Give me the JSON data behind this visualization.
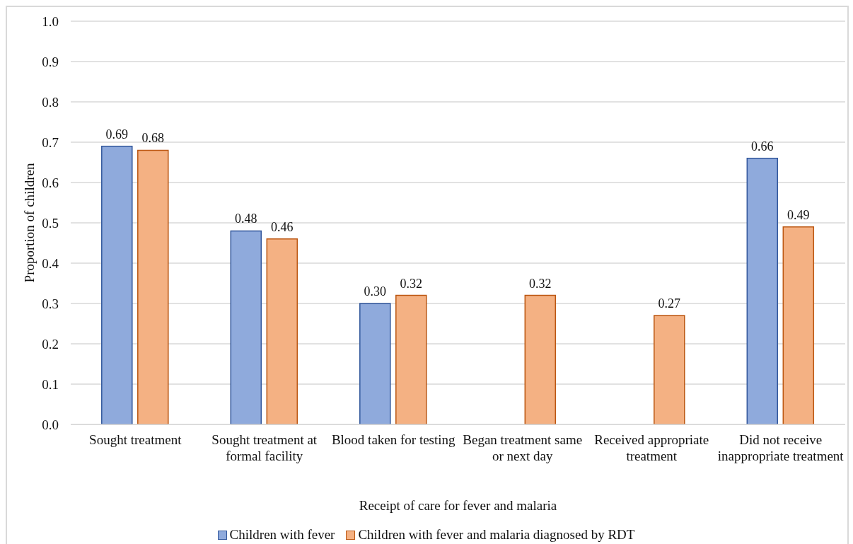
{
  "chart_data": {
    "type": "bar",
    "xlabel": "Receipt of care for fever and malaria",
    "ylabel": "Proportion of children",
    "categories": [
      "Sought treatment",
      "Sought treatment at formal facility",
      "Blood taken for testing",
      "Began treatment same or next day",
      "Received appropriate treatment",
      "Did not receive inappropriate treatment"
    ],
    "series": [
      {
        "name": "Children with fever",
        "color": "#8faadc",
        "values": [
          0.69,
          0.48,
          0.3,
          null,
          null,
          0.66
        ],
        "value_labels": [
          "0.69",
          "0.48",
          "0.30",
          null,
          null,
          "0.66"
        ]
      },
      {
        "name": "Children with fever and malaria diagnosed by RDT",
        "color": "#f4b183",
        "values": [
          0.68,
          0.46,
          0.32,
          0.32,
          0.27,
          0.49
        ],
        "value_labels": [
          "0.68",
          "0.46",
          "0.32",
          "0.32",
          "0.27",
          "0.49"
        ]
      }
    ],
    "ylim": [
      0,
      1
    ],
    "yticks": [
      {
        "value": 0,
        "label": "0.0"
      },
      0.1,
      0.2,
      0.3,
      0.4,
      0.5,
      0.6,
      0.7,
      0.8,
      0.9,
      {
        "value": 1,
        "label": "1.0"
      }
    ],
    "grid": "y",
    "legend": "bottom"
  }
}
